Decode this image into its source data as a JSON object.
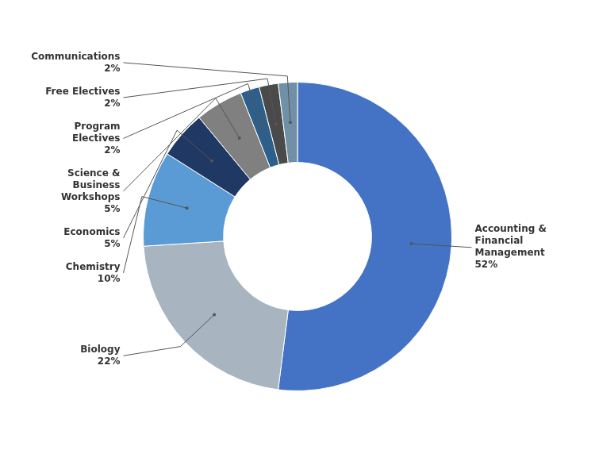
{
  "chart_data": {
    "type": "doughnut",
    "categories": [
      "Accounting &\nFinancial\nManagement",
      "Biology",
      "Chemistry",
      "Economics",
      "Science &\nBusiness\nWorkshops",
      "Program\nElectives",
      "Free Electives",
      "Communications"
    ],
    "values": [
      52,
      22,
      10,
      5,
      5,
      2,
      2,
      2
    ],
    "value_labels": [
      "52%",
      "22%",
      "10%",
      "5%",
      "5%",
      "2%",
      "2%",
      "2%"
    ],
    "colors": [
      "#4472C4",
      "#A8B4C0",
      "#5B9BD5",
      "#1F3864",
      "#808080",
      "#2E5F8A",
      "#4A4A4A",
      "#7090A8"
    ],
    "data_labels": true
  }
}
